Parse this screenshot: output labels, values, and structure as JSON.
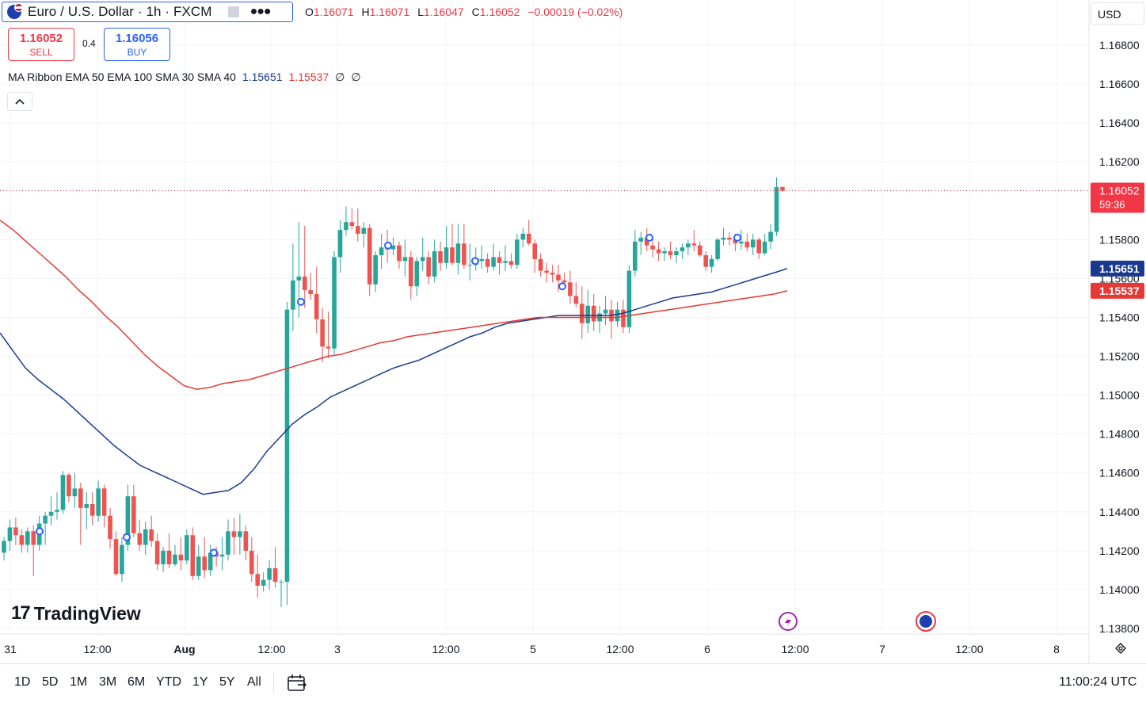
{
  "header": {
    "symbol_title": "Euro / U.S. Dollar · 1h · FXCM",
    "ohlc": {
      "o_label": "O",
      "o_value": "1.16071",
      "h_label": "H",
      "h_value": "1.16071",
      "l_label": "L",
      "l_value": "1.16047",
      "c_label": "C",
      "c_value": "1.16052",
      "change": "−0.00019 (−0.02%)"
    },
    "sell": {
      "price": "1.16052",
      "label": "SELL"
    },
    "buy": {
      "price": "1.16056",
      "label": "BUY"
    },
    "spread": "0.4",
    "indicator": {
      "name": "MA Ribbon EMA 50 EMA 100 SMA 30 SMA 40",
      "value1": "1.15651",
      "value2": "1.15537",
      "value3": "∅",
      "value4": "∅"
    },
    "currency": "USD"
  },
  "colors": {
    "up": "#26a69a",
    "down": "#ef5350",
    "ema50": "#1a3a8f",
    "ema100": "#e53935",
    "grid": "#f0f3fa",
    "axis_text": "#131722",
    "last_price": "#f23645"
  },
  "chart_data": {
    "type": "candlestick",
    "instrument": "EURUSD",
    "timeframe": "1h",
    "y_ticks": [
      "1.16800",
      "1.16600",
      "1.16400",
      "1.16200",
      "1.15800",
      "1.15600",
      "1.15400",
      "1.15200",
      "1.15000",
      "1.14800",
      "1.14600",
      "1.14400",
      "1.14200",
      "1.14000",
      "1.13800"
    ],
    "ylim": [
      1.1375,
      1.1695
    ],
    "x_tick_labels": [
      "31",
      "12:00",
      "Aug",
      "12:00",
      "3",
      "12:00",
      "5",
      "12:00",
      "6",
      "12:00",
      "7",
      "12:00",
      "8"
    ],
    "last_price": "1.16052",
    "countdown": "59:36",
    "ema50_label": "1.15651",
    "ema100_label": "1.15537",
    "candles": [
      [
        1.1419,
        1.1427,
        1.1415,
        1.1425
      ],
      [
        1.1425,
        1.1436,
        1.142,
        1.1432
      ],
      [
        1.1432,
        1.1437,
        1.1423,
        1.1428
      ],
      [
        1.1428,
        1.1431,
        1.1419,
        1.1423
      ],
      [
        1.1423,
        1.1432,
        1.1419,
        1.143
      ],
      [
        1.143,
        1.1433,
        1.1407,
        1.1423
      ],
      [
        1.1423,
        1.1438,
        1.142,
        1.1434
      ],
      [
        1.1434,
        1.144,
        1.1423,
        1.1438
      ],
      [
        1.1438,
        1.1448,
        1.1433,
        1.144
      ],
      [
        1.144,
        1.145,
        1.1436,
        1.1441
      ],
      [
        1.1441,
        1.1461,
        1.1439,
        1.1459
      ],
      [
        1.1459,
        1.146,
        1.1445,
        1.1448
      ],
      [
        1.1448,
        1.146,
        1.1442,
        1.1452
      ],
      [
        1.1452,
        1.1455,
        1.1423,
        1.1442
      ],
      [
        1.1442,
        1.145,
        1.1431,
        1.1444
      ],
      [
        1.1444,
        1.145,
        1.1433,
        1.1438
      ],
      [
        1.1438,
        1.1456,
        1.1435,
        1.1452
      ],
      [
        1.1452,
        1.1454,
        1.1432,
        1.1438
      ],
      [
        1.1438,
        1.1442,
        1.1421,
        1.1426
      ],
      [
        1.1426,
        1.143,
        1.1407,
        1.1408
      ],
      [
        1.1408,
        1.1427,
        1.1404,
        1.1423
      ],
      [
        1.1423,
        1.1454,
        1.142,
        1.1448
      ],
      [
        1.1448,
        1.1454,
        1.1427,
        1.1429
      ],
      [
        1.1429,
        1.1436,
        1.142,
        1.1423
      ],
      [
        1.1423,
        1.1435,
        1.1418,
        1.1431
      ],
      [
        1.1431,
        1.1438,
        1.1422,
        1.1425
      ],
      [
        1.1425,
        1.1429,
        1.141,
        1.1413
      ],
      [
        1.1413,
        1.1422,
        1.1409,
        1.142
      ],
      [
        1.142,
        1.1429,
        1.1411,
        1.1413
      ],
      [
        1.1413,
        1.1423,
        1.1412,
        1.1418
      ],
      [
        1.1418,
        1.1427,
        1.141,
        1.1415
      ],
      [
        1.1415,
        1.1431,
        1.1413,
        1.1428
      ],
      [
        1.1428,
        1.1432,
        1.1405,
        1.1407
      ],
      [
        1.1407,
        1.1423,
        1.1405,
        1.1417
      ],
      [
        1.1417,
        1.1427,
        1.1406,
        1.141
      ],
      [
        1.141,
        1.1423,
        1.1407,
        1.1419
      ],
      [
        1.1419,
        1.1422,
        1.1412,
        1.1417
      ],
      [
        1.1417,
        1.1427,
        1.141,
        1.1418
      ],
      [
        1.1418,
        1.1436,
        1.1415,
        1.143
      ],
      [
        1.143,
        1.1437,
        1.1418,
        1.1427
      ],
      [
        1.1427,
        1.1439,
        1.1418,
        1.143
      ],
      [
        1.143,
        1.1433,
        1.1415,
        1.142
      ],
      [
        1.142,
        1.1427,
        1.1404,
        1.1408
      ],
      [
        1.1408,
        1.1418,
        1.1396,
        1.1402
      ],
      [
        1.1402,
        1.1409,
        1.1399,
        1.1405
      ],
      [
        1.1405,
        1.1415,
        1.14,
        1.1411
      ],
      [
        1.1411,
        1.1422,
        1.1401,
        1.1404
      ],
      [
        1.1404,
        1.1405,
        1.1391,
        1.1404
      ],
      [
        1.1404,
        1.1548,
        1.1392,
        1.1544
      ],
      [
        1.1544,
        1.1578,
        1.1533,
        1.1559
      ],
      [
        1.1559,
        1.1589,
        1.154,
        1.1561
      ],
      [
        1.1561,
        1.1587,
        1.1545,
        1.1554
      ],
      [
        1.1554,
        1.1563,
        1.1549,
        1.1552
      ],
      [
        1.1552,
        1.1566,
        1.1532,
        1.1539
      ],
      [
        1.1539,
        1.1545,
        1.1517,
        1.1525
      ],
      [
        1.1525,
        1.1543,
        1.1519,
        1.1524
      ],
      [
        1.1524,
        1.1574,
        1.1521,
        1.1571
      ],
      [
        1.1571,
        1.159,
        1.1563,
        1.1585
      ],
      [
        1.1585,
        1.1597,
        1.1582,
        1.1589
      ],
      [
        1.1589,
        1.1596,
        1.1585,
        1.1587
      ],
      [
        1.1587,
        1.1596,
        1.1579,
        1.1583
      ],
      [
        1.1583,
        1.1589,
        1.1576,
        1.1586
      ],
      [
        1.1586,
        1.1588,
        1.1551,
        1.1557
      ],
      [
        1.1557,
        1.1574,
        1.1553,
        1.1572
      ],
      [
        1.1572,
        1.1583,
        1.1565,
        1.1576
      ],
      [
        1.1576,
        1.1585,
        1.1568,
        1.1575
      ],
      [
        1.1575,
        1.1581,
        1.1572,
        1.1577
      ],
      [
        1.1577,
        1.1579,
        1.1565,
        1.1569
      ],
      [
        1.1569,
        1.158,
        1.1561,
        1.1571
      ],
      [
        1.1571,
        1.1574,
        1.1549,
        1.1556
      ],
      [
        1.1556,
        1.1571,
        1.1551,
        1.1569
      ],
      [
        1.1569,
        1.1581,
        1.1564,
        1.1571
      ],
      [
        1.1571,
        1.1574,
        1.1557,
        1.1561
      ],
      [
        1.1561,
        1.158,
        1.1558,
        1.1574
      ],
      [
        1.1574,
        1.1579,
        1.1564,
        1.1568
      ],
      [
        1.1568,
        1.1587,
        1.1565,
        1.1576
      ],
      [
        1.1576,
        1.1588,
        1.1567,
        1.1568
      ],
      [
        1.1568,
        1.1588,
        1.1562,
        1.1578
      ],
      [
        1.1578,
        1.1588,
        1.1565,
        1.1567
      ],
      [
        1.1567,
        1.1578,
        1.1559,
        1.1567
      ],
      [
        1.1567,
        1.1576,
        1.1564,
        1.1569
      ],
      [
        1.1569,
        1.1577,
        1.1565,
        1.157
      ],
      [
        1.157,
        1.1573,
        1.1563,
        1.1566
      ],
      [
        1.1566,
        1.1578,
        1.1564,
        1.1571
      ],
      [
        1.1571,
        1.1574,
        1.1562,
        1.1568
      ],
      [
        1.1568,
        1.1577,
        1.1564,
        1.1569
      ],
      [
        1.1569,
        1.1573,
        1.1565,
        1.1567
      ],
      [
        1.1567,
        1.1583,
        1.1565,
        1.158
      ],
      [
        1.158,
        1.1586,
        1.1576,
        1.1583
      ],
      [
        1.1583,
        1.159,
        1.1577,
        1.1578
      ],
      [
        1.1578,
        1.158,
        1.1563,
        1.157
      ],
      [
        1.157,
        1.1573,
        1.1561,
        1.1564
      ],
      [
        1.1564,
        1.1568,
        1.1558,
        1.1563
      ],
      [
        1.1563,
        1.1567,
        1.1558,
        1.1562
      ],
      [
        1.1562,
        1.1567,
        1.1553,
        1.1559
      ],
      [
        1.1559,
        1.1563,
        1.1556,
        1.1558
      ],
      [
        1.1558,
        1.1564,
        1.1547,
        1.1551
      ],
      [
        1.1551,
        1.1558,
        1.1545,
        1.1547
      ],
      [
        1.1547,
        1.1556,
        1.1529,
        1.1537
      ],
      [
        1.1537,
        1.1554,
        1.1532,
        1.1546
      ],
      [
        1.1546,
        1.1552,
        1.1533,
        1.1538
      ],
      [
        1.1538,
        1.1546,
        1.1532,
        1.1542
      ],
      [
        1.1542,
        1.1551,
        1.1536,
        1.1544
      ],
      [
        1.1544,
        1.1549,
        1.1529,
        1.1538
      ],
      [
        1.1538,
        1.1548,
        1.1535,
        1.1544
      ],
      [
        1.1544,
        1.1549,
        1.1532,
        1.1535
      ],
      [
        1.1535,
        1.1567,
        1.1532,
        1.1564
      ],
      [
        1.1564,
        1.1585,
        1.1561,
        1.1579
      ],
      [
        1.1579,
        1.1584,
        1.1572,
        1.1581
      ],
      [
        1.1581,
        1.1586,
        1.1574,
        1.1577
      ],
      [
        1.1577,
        1.1581,
        1.1571,
        1.1575
      ],
      [
        1.1575,
        1.1579,
        1.1569,
        1.1573
      ],
      [
        1.1573,
        1.1576,
        1.1569,
        1.1574
      ],
      [
        1.1574,
        1.1579,
        1.157,
        1.1572
      ],
      [
        1.1572,
        1.1576,
        1.1568,
        1.1574
      ],
      [
        1.1574,
        1.1578,
        1.157,
        1.1576
      ],
      [
        1.1576,
        1.158,
        1.1572,
        1.1578
      ],
      [
        1.1578,
        1.1585,
        1.1574,
        1.1577
      ],
      [
        1.1577,
        1.1579,
        1.1571,
        1.1572
      ],
      [
        1.1572,
        1.1574,
        1.1564,
        1.1566
      ],
      [
        1.1566,
        1.1572,
        1.1563,
        1.157
      ],
      [
        1.157,
        1.1581,
        1.1569,
        1.158
      ],
      [
        1.158,
        1.1586,
        1.1577,
        1.1581
      ],
      [
        1.1581,
        1.1584,
        1.1577,
        1.158
      ],
      [
        1.158,
        1.1583,
        1.1574,
        1.1578
      ],
      [
        1.1578,
        1.1585,
        1.1575,
        1.1579
      ],
      [
        1.1579,
        1.1583,
        1.1574,
        1.1576
      ],
      [
        1.1576,
        1.1583,
        1.1572,
        1.158
      ],
      [
        1.158,
        1.1581,
        1.157,
        1.1573
      ],
      [
        1.1573,
        1.1583,
        1.1572,
        1.1579
      ],
      [
        1.1579,
        1.1588,
        1.1575,
        1.1584
      ],
      [
        1.1584,
        1.1612,
        1.1582,
        1.1607
      ],
      [
        1.16071,
        1.16071,
        1.16047,
        1.16052
      ]
    ],
    "ema50": [
      1.1532,
      1.1523,
      1.1514,
      1.1508,
      1.1503,
      1.1498,
      1.1492,
      1.1486,
      1.148,
      1.1474,
      1.1469,
      1.1464,
      1.1461,
      1.1458,
      1.1455,
      1.1452,
      1.1449,
      1.145,
      1.1451,
      1.1455,
      1.1462,
      1.1471,
      1.1478,
      1.1485,
      1.149,
      1.1494,
      1.1499,
      1.1502,
      1.1505,
      1.1508,
      1.1511,
      1.1514,
      1.1516,
      1.1518,
      1.1521,
      1.1524,
      1.1527,
      1.153,
      1.1532,
      1.1535,
      1.1537,
      1.1538,
      1.1539,
      1.154,
      1.1541,
      1.1541,
      1.1541,
      1.1541,
      1.1541,
      1.1542,
      1.1544,
      1.1546,
      1.1548,
      1.155,
      1.1551,
      1.1552,
      1.1553,
      1.1555,
      1.1557,
      1.1559,
      1.1561,
      1.1563,
      1.15651
    ],
    "ema100": [
      1.159,
      1.1585,
      1.1579,
      1.1573,
      1.1567,
      1.1561,
      1.1554,
      1.1548,
      1.1541,
      1.1535,
      1.1528,
      1.1521,
      1.1515,
      1.151,
      1.1505,
      1.1503,
      1.1504,
      1.1506,
      1.1507,
      1.1508,
      1.151,
      1.1512,
      1.1514,
      1.1516,
      1.1518,
      1.152,
      1.1521,
      1.1523,
      1.1525,
      1.1527,
      1.1528,
      1.153,
      1.1531,
      1.1532,
      1.1533,
      1.1534,
      1.1535,
      1.1536,
      1.1537,
      1.1538,
      1.1539,
      1.154,
      1.154,
      1.154,
      1.154,
      1.154,
      1.154,
      1.154,
      1.1541,
      1.1542,
      1.1543,
      1.1544,
      1.1545,
      1.1546,
      1.1547,
      1.1548,
      1.1549,
      1.155,
      1.1551,
      1.1552,
      1.15537
    ]
  },
  "bottom": {
    "ranges": [
      "1D",
      "5D",
      "1M",
      "3M",
      "6M",
      "YTD",
      "1Y",
      "5Y",
      "All"
    ],
    "clock": "11:00:24 UTC"
  },
  "logo": {
    "text": "TradingView"
  }
}
